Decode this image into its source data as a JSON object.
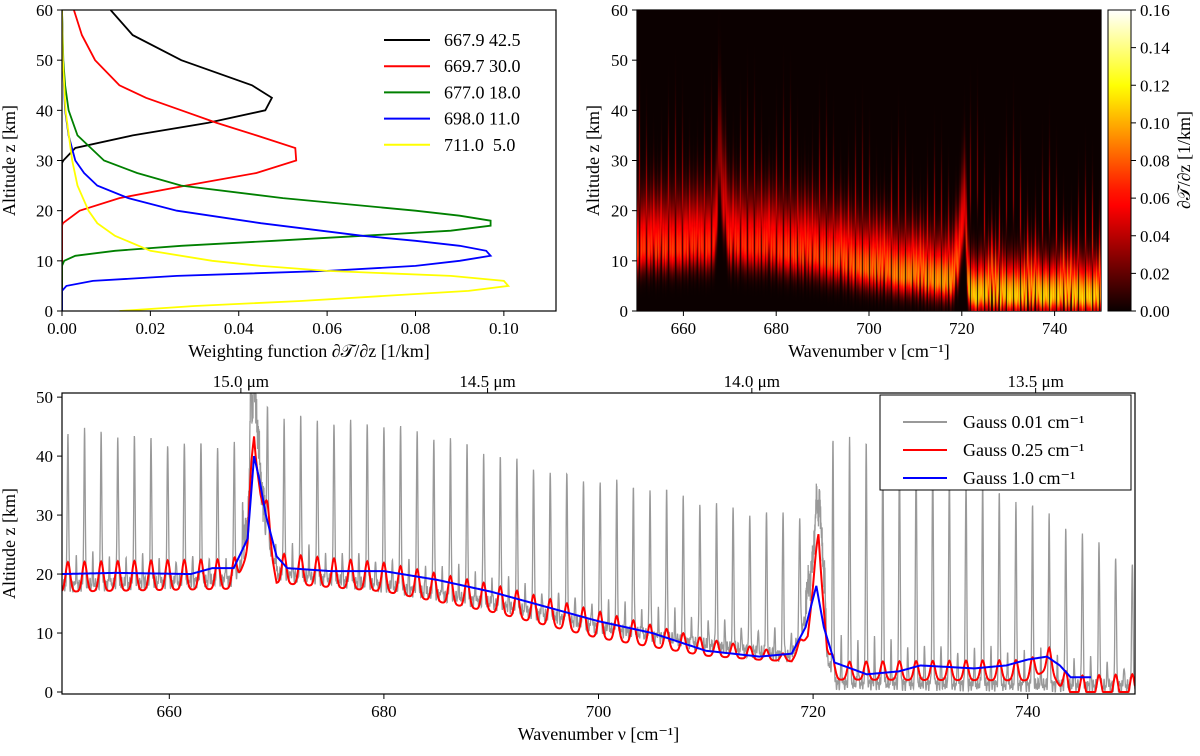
{
  "chart_data": [
    {
      "type": "line",
      "title": "",
      "xlabel": "Weighting function ∂𝒯/∂z [1/km]",
      "ylabel": "Altitude z [km]",
      "xlim": [
        0,
        0.1118
      ],
      "ylim": [
        0,
        60
      ],
      "xticks": [
        "0.00",
        "0.02",
        "0.04",
        "0.06",
        "0.08",
        "0.10"
      ],
      "xtick_values": [
        0,
        0.02,
        0.04,
        0.06,
        0.08,
        0.1
      ],
      "yticks": [
        "0",
        "10",
        "20",
        "30",
        "40",
        "50",
        "60"
      ],
      "ytick_values": [
        0,
        10,
        20,
        30,
        40,
        50,
        60
      ],
      "grid": false,
      "legend": {
        "placement": "top-right"
      },
      "series": [
        {
          "name": "667.9 42.5",
          "color": "#000000",
          "z": [
            0,
            29.5,
            30,
            32.5,
            35,
            37.5,
            40,
            42.5,
            45,
            50,
            55,
            60
          ],
          "x": [
            0,
            0,
            0.0003,
            0.003,
            0.016,
            0.033,
            0.046,
            0.0475,
            0.043,
            0.027,
            0.016,
            0.011
          ]
        },
        {
          "name": "669.7 30.0",
          "color": "#ff0000",
          "z": [
            0,
            17,
            17.5,
            20,
            22.5,
            25,
            27.5,
            30,
            32.5,
            35,
            37.5,
            40,
            42.5,
            45,
            50,
            55,
            60
          ],
          "x": [
            0,
            0,
            0.0002,
            0.004,
            0.013,
            0.028,
            0.044,
            0.053,
            0.0528,
            0.044,
            0.035,
            0.027,
            0.019,
            0.013,
            0.0075,
            0.0045,
            0.0027
          ]
        },
        {
          "name": "677.0 18.0",
          "color": "#008000",
          "z": [
            0,
            9,
            10,
            11,
            12,
            13,
            14,
            15,
            16,
            17,
            18,
            19,
            20,
            22.5,
            25,
            27.5,
            30,
            35,
            40,
            45,
            50,
            60
          ],
          "x": [
            0,
            0,
            0.0005,
            0.003,
            0.012,
            0.027,
            0.048,
            0.068,
            0.088,
            0.097,
            0.097,
            0.09,
            0.08,
            0.05,
            0.027,
            0.017,
            0.0095,
            0.0035,
            0.0015,
            0.0007,
            0.0003,
            0
          ]
        },
        {
          "name": "698.0 11.0",
          "color": "#0000ff",
          "z": [
            0,
            4,
            5,
            6,
            7,
            8,
            9,
            10,
            11,
            12,
            13,
            14,
            15,
            17.5,
            20,
            22.5,
            25,
            27.5,
            30,
            35,
            40,
            50,
            60
          ],
          "x": [
            0,
            0,
            0.001,
            0.007,
            0.026,
            0.06,
            0.08,
            0.09,
            0.097,
            0.096,
            0.09,
            0.08,
            0.068,
            0.045,
            0.026,
            0.015,
            0.008,
            0.005,
            0.003,
            0.0015,
            0.0007,
            0.0002,
            0
          ]
        },
        {
          "name": "711.0  5.0",
          "color": "#ffff00",
          "z": [
            0,
            1,
            2,
            3,
            4,
            5,
            6,
            7,
            8,
            9,
            10,
            12,
            15,
            17.5,
            20,
            25,
            30,
            40,
            50,
            60
          ],
          "x": [
            0.013,
            0.03,
            0.054,
            0.073,
            0.092,
            0.101,
            0.1,
            0.088,
            0.06,
            0.045,
            0.034,
            0.02,
            0.012,
            0.008,
            0.006,
            0.0035,
            0.0023,
            0.0008,
            0.0002,
            0
          ]
        }
      ]
    },
    {
      "type": "heatmap",
      "title": "",
      "xlabel": "Wavenumber ν [cm⁻¹]",
      "ylabel": "Altitude z [km]",
      "xlim": [
        650,
        750
      ],
      "ylim": [
        0,
        60
      ],
      "xticks": [
        "660",
        "680",
        "700",
        "720",
        "740"
      ],
      "xtick_values": [
        660,
        680,
        700,
        720,
        740
      ],
      "yticks": [
        "0",
        "10",
        "20",
        "30",
        "40",
        "50",
        "60"
      ],
      "ytick_values": [
        0,
        10,
        20,
        30,
        40,
        50,
        60
      ],
      "colormap": "hot",
      "colorbar": {
        "label": "∂𝒯/∂z [1/km]",
        "range": [
          0,
          0.16
        ],
        "ticks": [
          "0.00",
          "0.02",
          "0.04",
          "0.06",
          "0.08",
          "0.10",
          "0.12",
          "0.14",
          "0.16"
        ],
        "tick_values": [
          0,
          0.02,
          0.04,
          0.06,
          0.08,
          0.1,
          0.12,
          0.14,
          0.16
        ]
      }
    },
    {
      "type": "line",
      "title": "",
      "xlabel": "Wavenumber ν [cm⁻¹]",
      "ylabel": "Altitude z [km]",
      "xlim": [
        650,
        750
      ],
      "ylim": [
        -0.34,
        50.7
      ],
      "xticks": [
        "660",
        "680",
        "700",
        "720",
        "740"
      ],
      "xtick_values": [
        660,
        680,
        700,
        720,
        740
      ],
      "yticks": [
        "0",
        "10",
        "20",
        "30",
        "40",
        "50"
      ],
      "ytick_values": [
        0,
        10,
        20,
        30,
        40,
        50
      ],
      "secondary_xaxis": {
        "ticks": [
          "15.0 μm",
          "14.5 μm",
          "14.0 μm",
          "13.5 μm"
        ],
        "tick_values_cm": [
          666.67,
          689.66,
          714.29,
          740.74
        ]
      },
      "legend": {
        "placement": "top-right"
      },
      "line_spacing_cm": 1.55,
      "line_offset_cm": 650.55,
      "series": [
        {
          "name": "Gauss 0.01 cm⁻¹",
          "color": "#999999",
          "baseline": [
            [
              650,
              18
            ],
            [
              666,
              19
            ],
            [
              667.3,
              24
            ],
            [
              667.9,
              50
            ],
            [
              668.6,
              30
            ],
            [
              670,
              20
            ],
            [
              680,
              18
            ],
            [
              690,
              15
            ],
            [
              700,
              11
            ],
            [
              710,
              8
            ],
            [
              718,
              6
            ],
            [
              719.6,
              14
            ],
            [
              720.6,
              30
            ],
            [
              721.3,
              6
            ],
            [
              722,
              1.5
            ],
            [
              750,
              1
            ]
          ],
          "peak": [
            [
              650,
              44
            ],
            [
              666,
              42
            ],
            [
              667.9,
              52
            ],
            [
              670,
              46
            ],
            [
              680,
              46
            ],
            [
              690,
              40
            ],
            [
              700,
              36
            ],
            [
              710,
              32
            ],
            [
              719,
              30
            ],
            [
              721,
              30
            ],
            [
              722,
              44
            ],
            [
              735,
              36
            ],
            [
              750,
              22
            ]
          ]
        },
        {
          "name": "Gauss 0.25 cm⁻¹",
          "color": "#ff0000",
          "baseline": [
            [
              650,
              18.5
            ],
            [
              666,
              19
            ],
            [
              667.3,
              25
            ],
            [
              667.9,
              43
            ],
            [
              668.5,
              35
            ],
            [
              669.5,
              25
            ],
            [
              670,
              20
            ],
            [
              680,
              18.5
            ],
            [
              690,
              15
            ],
            [
              700,
              10.5
            ],
            [
              710,
              7
            ],
            [
              718,
              5.5
            ],
            [
              719.5,
              10
            ],
            [
              720.5,
              26
            ],
            [
              721.3,
              8
            ],
            [
              722,
              3
            ],
            [
              740,
              3
            ],
            [
              742,
              5
            ],
            [
              743,
              2
            ],
            [
              744,
              0.2
            ],
            [
              750,
              0.2
            ]
          ],
          "amplitude": [
            [
              650,
              5
            ],
            [
              666,
              5
            ],
            [
              670,
              5
            ],
            [
              700,
              4.5
            ],
            [
              715,
              2
            ],
            [
              718,
              1
            ],
            [
              722,
              3
            ],
            [
              742,
              3.5
            ],
            [
              750,
              4
            ]
          ]
        },
        {
          "name": "Gauss 1.0 cm⁻¹",
          "color": "#0000ff",
          "points": [
            [
              650,
              20
            ],
            [
              655,
              20.2
            ],
            [
              662,
              20
            ],
            [
              664,
              21
            ],
            [
              666,
              21
            ],
            [
              667.3,
              26
            ],
            [
              667.9,
              40
            ],
            [
              668.4,
              36
            ],
            [
              669,
              30
            ],
            [
              670,
              23
            ],
            [
              671,
              21
            ],
            [
              675,
              20.5
            ],
            [
              680,
              20.5
            ],
            [
              685,
              19
            ],
            [
              690,
              17
            ],
            [
              695,
              14.5
            ],
            [
              700,
              12
            ],
            [
              705,
              10
            ],
            [
              710,
              7
            ],
            [
              715,
              6
            ],
            [
              718,
              6.5
            ],
            [
              719.3,
              11
            ],
            [
              720.3,
              18
            ],
            [
              721,
              11
            ],
            [
              722,
              5
            ],
            [
              725,
              3
            ],
            [
              728,
              3.5
            ],
            [
              730,
              4.5
            ],
            [
              735,
              4
            ],
            [
              738,
              4.5
            ],
            [
              740,
              5.5
            ],
            [
              741.8,
              6
            ],
            [
              743,
              4.5
            ],
            [
              744,
              2.5
            ],
            [
              746,
              2.5
            ]
          ]
        }
      ]
    }
  ]
}
